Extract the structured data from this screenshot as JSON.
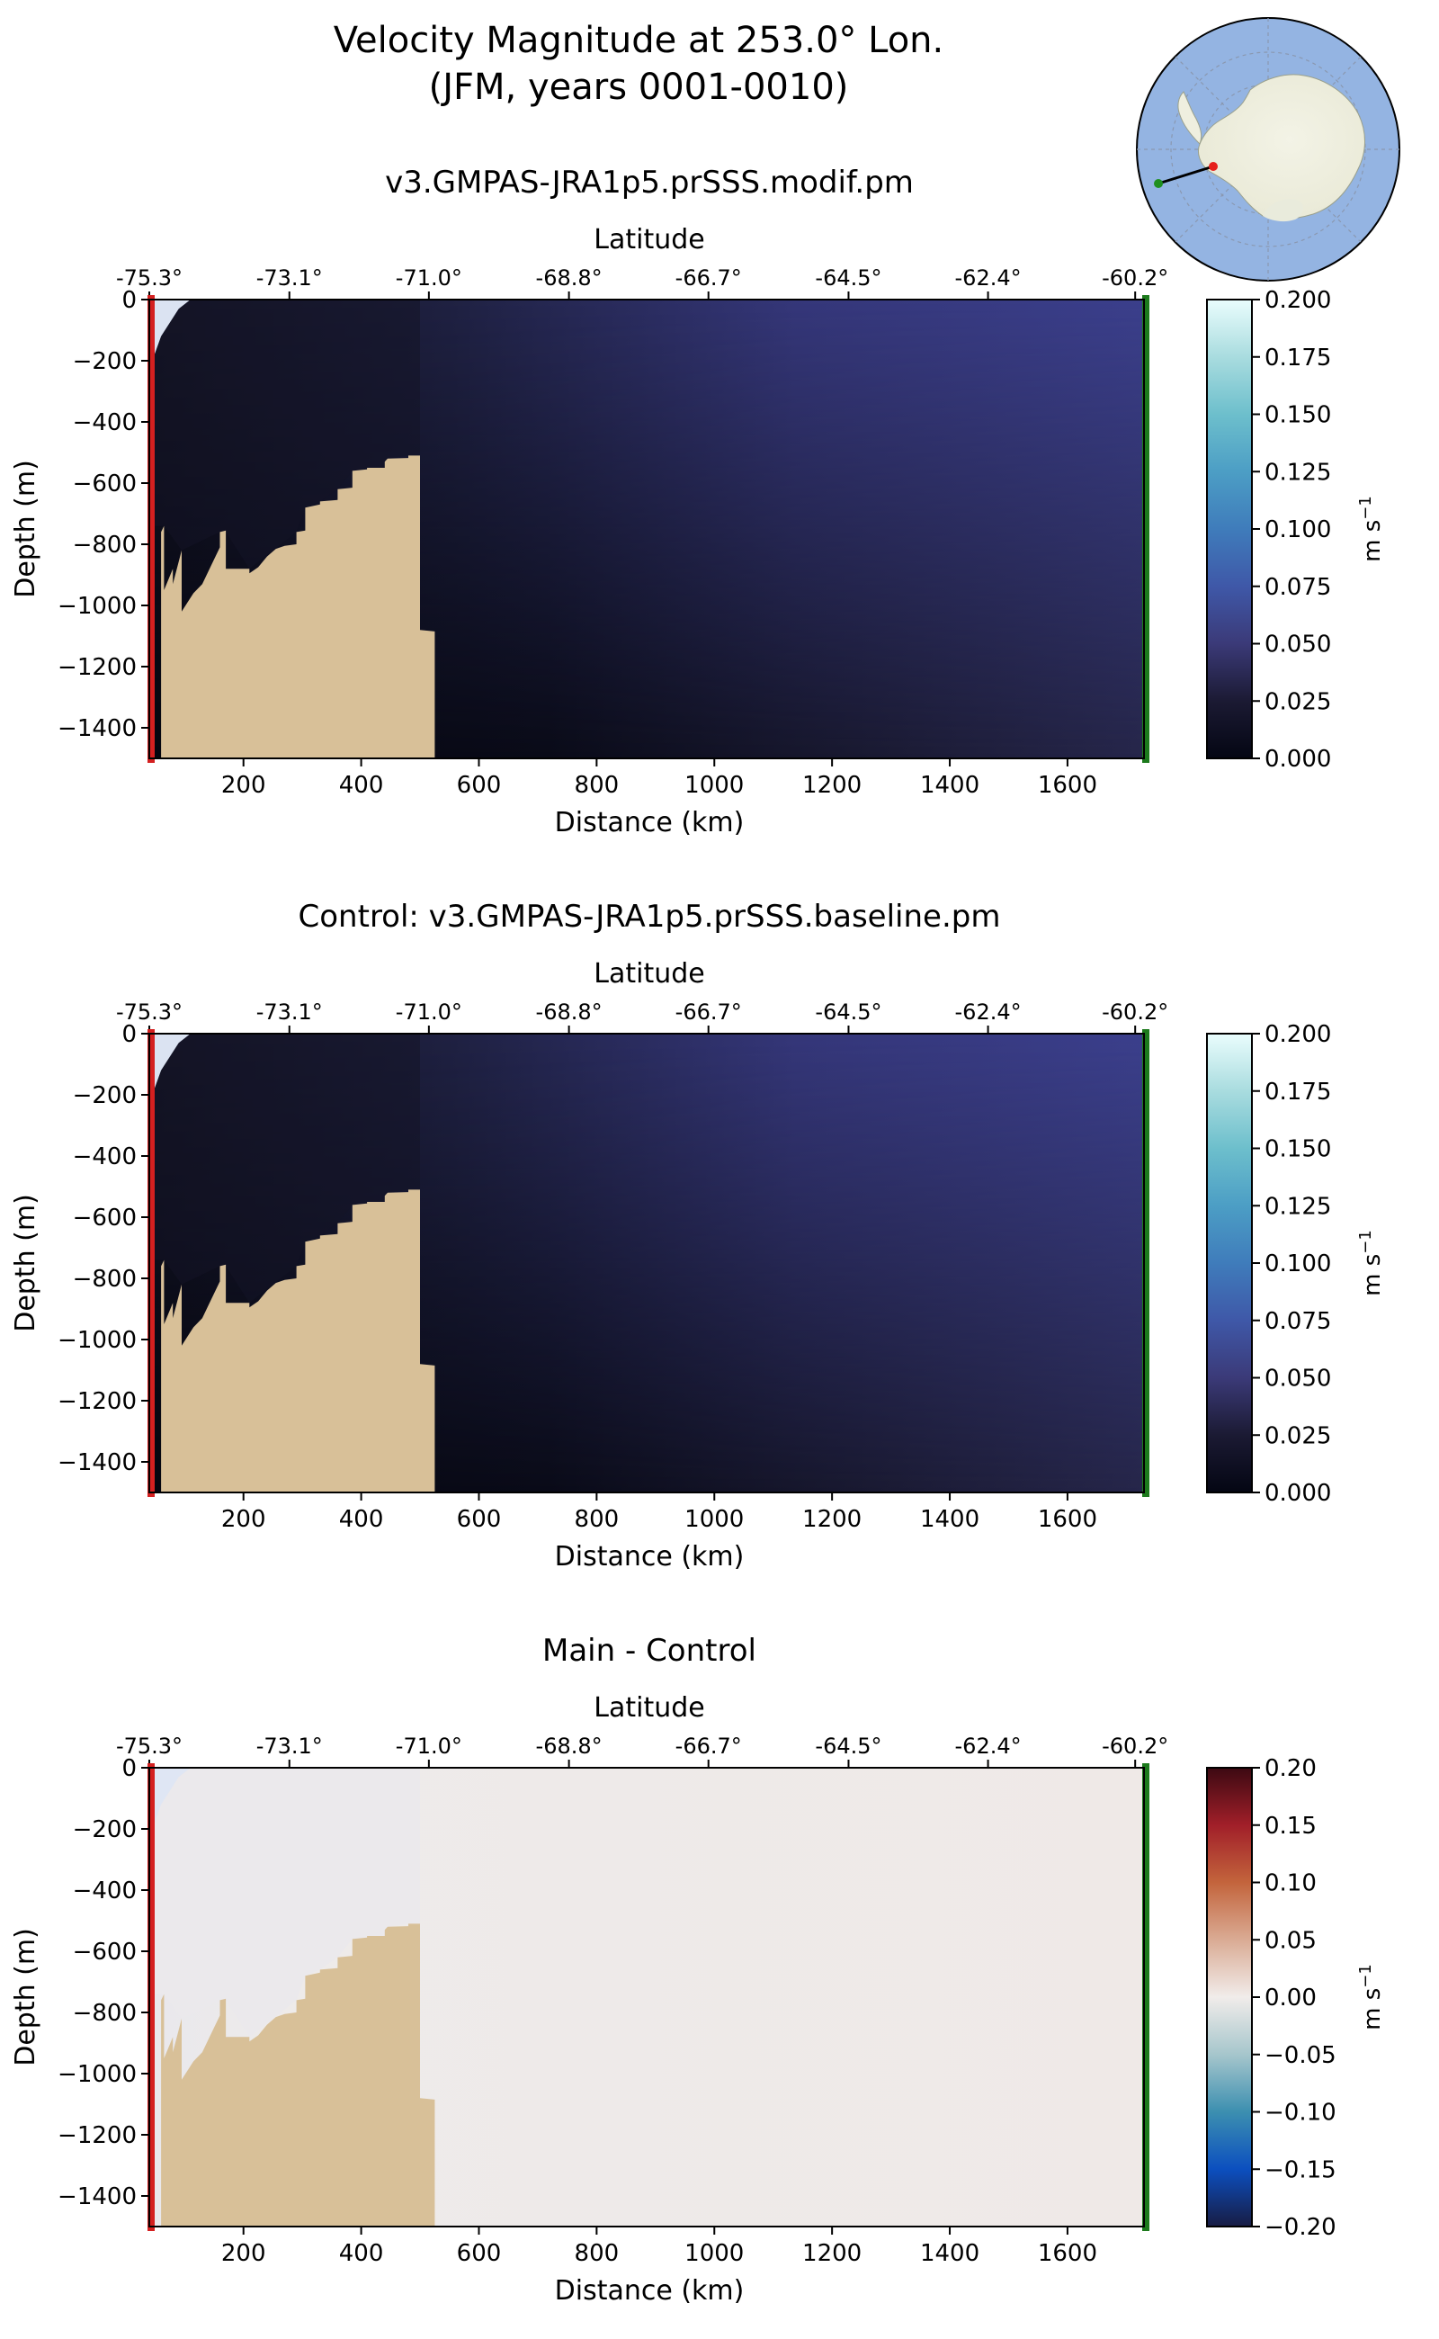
{
  "figure": {
    "title_line1": "Velocity Magnitude at 253.0° Lon.",
    "title_line2": "(JFM, years 0001-0010)"
  },
  "inset_map": {
    "land_color": "#efefdf",
    "ocean_color": "#94b4e2",
    "start_marker_color": "#e6201c",
    "end_marker_color": "#1f8f1f"
  },
  "colors": {
    "bathymetry": "#d8c098",
    "start_edge": "#d42020",
    "end_edge": "#1c7a1c",
    "shelf_tint": "#dbe3f2"
  },
  "chart_data": [
    {
      "type": "heatmap",
      "id": "main",
      "title": "v3.GMPAS-JRA1p5.prSSS.modif.pm",
      "xlabel": "Distance (km)",
      "ylabel": "Depth (m)",
      "top_xlabel": "Latitude",
      "xlim": [
        40,
        1730
      ],
      "ylim": [
        -1500,
        0
      ],
      "x_ticks": [
        200,
        400,
        600,
        800,
        1000,
        1200,
        1400,
        1600
      ],
      "y_ticks": [
        0,
        -200,
        -400,
        -600,
        -800,
        -1000,
        -1200,
        -1400
      ],
      "y_tick_labels": [
        "0",
        "−200",
        "−400",
        "−600",
        "−800",
        "−1000",
        "−1200",
        "−1400"
      ],
      "lat_tick_positions_km": [
        40,
        278,
        515,
        753,
        990,
        1228,
        1465,
        1715
      ],
      "lat_tick_labels": [
        "-75.3°",
        "-73.1°",
        "-71.0°",
        "-68.8°",
        "-66.7°",
        "-64.5°",
        "-62.4°",
        "-60.2°"
      ],
      "colormap": "ice",
      "clim": [
        0.0,
        0.2
      ],
      "colorbar_ticks": [
        "0.200",
        "0.175",
        "0.150",
        "0.125",
        "0.100",
        "0.075",
        "0.050",
        "0.025",
        "0.000"
      ],
      "colorbar_label": "m s",
      "colorbar_label_exp": "−1",
      "field_max": 0.07,
      "bathymetry_km": [
        40,
        60,
        60,
        65,
        65,
        80,
        80,
        95,
        95,
        105,
        115,
        130,
        145,
        160,
        160,
        170,
        170,
        210,
        210,
        225,
        240,
        255,
        270,
        290,
        290,
        305,
        305,
        330,
        330,
        360,
        360,
        385,
        385,
        410,
        410,
        440,
        440,
        445,
        480,
        480,
        500,
        500,
        525,
        525
      ],
      "bathymetry_depth": [
        -1500,
        -1500,
        -760,
        -740,
        -950,
        -880,
        -930,
        -820,
        -1020,
        -990,
        -960,
        -930,
        -870,
        -810,
        -760,
        -755,
        -880,
        -880,
        -895,
        -875,
        -840,
        -815,
        -805,
        -800,
        -760,
        -755,
        -680,
        -670,
        -660,
        -655,
        -620,
        -615,
        -560,
        -555,
        -550,
        -550,
        -530,
        -520,
        -518,
        -510,
        -510,
        -1080,
        -1085,
        -1500
      ]
    },
    {
      "type": "heatmap",
      "id": "control",
      "title": "Control: v3.GMPAS-JRA1p5.prSSS.baseline.pm",
      "xlabel": "Distance (km)",
      "ylabel": "Depth (m)",
      "top_xlabel": "Latitude",
      "xlim": [
        40,
        1730
      ],
      "ylim": [
        -1500,
        0
      ],
      "x_ticks": [
        200,
        400,
        600,
        800,
        1000,
        1200,
        1400,
        1600
      ],
      "y_ticks": [
        0,
        -200,
        -400,
        -600,
        -800,
        -1000,
        -1200,
        -1400
      ],
      "y_tick_labels": [
        "0",
        "−200",
        "−400",
        "−600",
        "−800",
        "−1000",
        "−1200",
        "−1400"
      ],
      "lat_tick_positions_km": [
        40,
        278,
        515,
        753,
        990,
        1228,
        1465,
        1715
      ],
      "lat_tick_labels": [
        "-75.3°",
        "-73.1°",
        "-71.0°",
        "-68.8°",
        "-66.7°",
        "-64.5°",
        "-62.4°",
        "-60.2°"
      ],
      "colormap": "ice",
      "clim": [
        0.0,
        0.2
      ],
      "colorbar_ticks": [
        "0.200",
        "0.175",
        "0.150",
        "0.125",
        "0.100",
        "0.075",
        "0.050",
        "0.025",
        "0.000"
      ],
      "colorbar_label": "m s",
      "colorbar_label_exp": "−1",
      "field_max": 0.068,
      "bathymetry_km": [
        40,
        60,
        60,
        65,
        65,
        80,
        80,
        95,
        95,
        105,
        115,
        130,
        145,
        160,
        160,
        170,
        170,
        210,
        210,
        225,
        240,
        255,
        270,
        290,
        290,
        305,
        305,
        330,
        330,
        360,
        360,
        385,
        385,
        410,
        410,
        440,
        440,
        445,
        480,
        480,
        500,
        500,
        525,
        525
      ],
      "bathymetry_depth": [
        -1500,
        -1500,
        -760,
        -740,
        -950,
        -880,
        -930,
        -820,
        -1020,
        -990,
        -960,
        -930,
        -870,
        -810,
        -760,
        -755,
        -880,
        -880,
        -895,
        -875,
        -840,
        -815,
        -805,
        -800,
        -760,
        -755,
        -680,
        -670,
        -660,
        -655,
        -620,
        -615,
        -560,
        -555,
        -550,
        -550,
        -530,
        -520,
        -518,
        -510,
        -510,
        -1080,
        -1085,
        -1500
      ]
    },
    {
      "type": "heatmap",
      "id": "difference",
      "title": "Main - Control",
      "xlabel": "Distance (km)",
      "ylabel": "Depth (m)",
      "top_xlabel": "Latitude",
      "xlim": [
        40,
        1730
      ],
      "ylim": [
        -1500,
        0
      ],
      "x_ticks": [
        200,
        400,
        600,
        800,
        1000,
        1200,
        1400,
        1600
      ],
      "y_ticks": [
        0,
        -200,
        -400,
        -600,
        -800,
        -1000,
        -1200,
        -1400
      ],
      "y_tick_labels": [
        "0",
        "−200",
        "−400",
        "−600",
        "−800",
        "−1000",
        "−1200",
        "−1400"
      ],
      "lat_tick_positions_km": [
        40,
        278,
        515,
        753,
        990,
        1228,
        1465,
        1715
      ],
      "lat_tick_labels": [
        "-75.3°",
        "-73.1°",
        "-71.0°",
        "-68.8°",
        "-66.7°",
        "-64.5°",
        "-62.4°",
        "-60.2°"
      ],
      "colormap": "balance",
      "clim": [
        -0.2,
        0.2
      ],
      "colorbar_ticks": [
        "0.20",
        "0.15",
        "0.10",
        "0.05",
        "0.00",
        "−0.05",
        "−0.10",
        "−0.15",
        "−0.20"
      ],
      "colorbar_label": "m s",
      "colorbar_label_exp": "−1",
      "field_max": 0.002,
      "bathymetry_km": [
        40,
        60,
        60,
        65,
        65,
        80,
        80,
        95,
        95,
        105,
        115,
        130,
        145,
        160,
        160,
        170,
        170,
        210,
        210,
        225,
        240,
        255,
        270,
        290,
        290,
        305,
        305,
        330,
        330,
        360,
        360,
        385,
        385,
        410,
        410,
        440,
        440,
        445,
        480,
        480,
        500,
        500,
        525,
        525
      ],
      "bathymetry_depth": [
        -1500,
        -1500,
        -760,
        -740,
        -950,
        -880,
        -930,
        -820,
        -1020,
        -990,
        -960,
        -930,
        -870,
        -810,
        -760,
        -755,
        -880,
        -880,
        -895,
        -875,
        -840,
        -815,
        -805,
        -800,
        -760,
        -755,
        -680,
        -670,
        -660,
        -655,
        -620,
        -615,
        -560,
        -555,
        -550,
        -550,
        -530,
        -520,
        -518,
        -510,
        -510,
        -1080,
        -1085,
        -1500
      ]
    }
  ]
}
